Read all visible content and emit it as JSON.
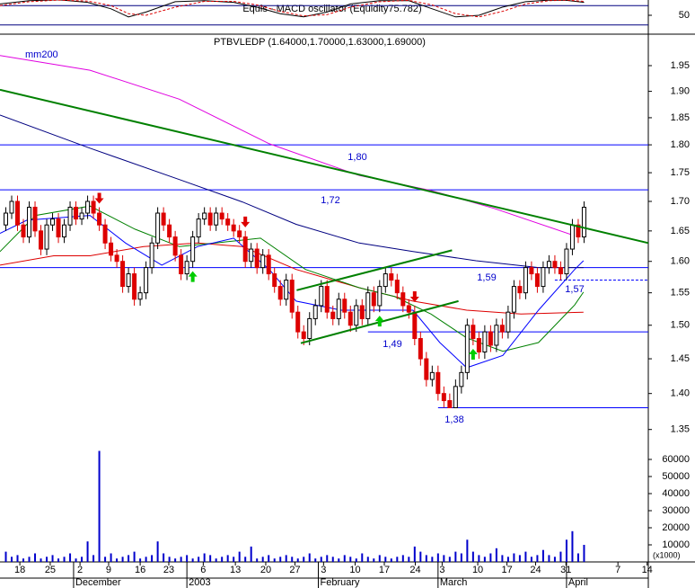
{
  "chart_data": [
    {
      "type": "line",
      "title": "Equis - MACD oscillator (Equidity75.782)",
      "xlim": [
        0,
        111
      ],
      "ylim": [
        0,
        100
      ],
      "yticks": [
        50
      ],
      "hlines": [
        20,
        80
      ],
      "series": [
        {
          "color": "#000000",
          "style": "solid",
          "x": [
            0,
            5,
            10,
            15,
            19,
            22,
            25,
            30,
            35,
            40,
            44,
            48,
            52,
            56,
            60,
            65,
            70,
            74,
            78,
            82,
            86,
            90,
            94,
            97,
            100
          ],
          "values": [
            85,
            95,
            98,
            90,
            70,
            45,
            60,
            92,
            95,
            90,
            75,
            55,
            45,
            60,
            85,
            95,
            95,
            70,
            45,
            50,
            75,
            92,
            97,
            96,
            90
          ]
        },
        {
          "color": "#dd0000",
          "style": "dashed",
          "x": [
            0,
            5,
            10,
            15,
            19,
            22,
            25,
            30,
            35,
            40,
            44,
            48,
            52,
            56,
            60,
            65,
            70,
            74,
            78,
            82,
            86,
            90,
            94,
            97,
            100
          ],
          "values": [
            80,
            92,
            97,
            94,
            80,
            55,
            50,
            75,
            93,
            93,
            82,
            62,
            48,
            52,
            75,
            92,
            96,
            82,
            55,
            45,
            62,
            85,
            95,
            97,
            93
          ]
        }
      ]
    },
    {
      "type": "candlestick",
      "title": "PTBVLEDP (1.64000,1.70000,1.63000,1.69000)",
      "annotation": "mm200",
      "log": true,
      "xlim": [
        0,
        111
      ],
      "ylim": [
        1.335,
        2.013
      ],
      "yticks": [
        1.35,
        {
          "value": 1.4,
          "label": "1.40"
        },
        1.45,
        {
          "value": 1.5,
          "label": "1.50"
        },
        1.55,
        {
          "value": 1.6,
          "label": "1.60"
        },
        1.65,
        {
          "value": 1.7,
          "label": "1.70"
        },
        1.75,
        {
          "value": 1.8,
          "label": "1.80"
        },
        1.85,
        {
          "value": 1.9,
          "label": "1.90"
        },
        1.95
      ],
      "up_color": "#ffffff",
      "down_color": "#dd0000",
      "x": [
        1,
        2,
        3,
        4,
        5,
        6,
        7,
        8,
        9,
        10,
        11,
        12,
        13,
        14,
        15,
        16,
        17,
        18,
        19,
        20,
        21,
        22,
        23,
        24,
        25,
        26,
        27,
        28,
        29,
        30,
        31,
        32,
        33,
        34,
        35,
        36,
        37,
        38,
        39,
        40,
        41,
        42,
        43,
        44,
        45,
        46,
        47,
        48,
        49,
        50,
        51,
        52,
        53,
        54,
        55,
        56,
        57,
        58,
        59,
        60,
        61,
        62,
        63,
        64,
        65,
        66,
        67,
        68,
        69,
        70,
        71,
        72,
        73,
        74,
        75,
        76,
        77,
        78,
        79,
        80,
        81,
        82,
        83,
        84,
        85,
        86,
        87,
        88,
        89,
        90,
        91,
        92,
        93,
        94,
        95,
        96,
        97,
        98,
        99,
        100
      ],
      "open": [
        1.66,
        1.68,
        1.7,
        1.66,
        1.64,
        1.69,
        1.65,
        1.62,
        1.66,
        1.67,
        1.64,
        1.66,
        1.69,
        1.67,
        1.68,
        1.7,
        1.68,
        1.66,
        1.63,
        1.61,
        1.6,
        1.56,
        1.58,
        1.54,
        1.55,
        1.59,
        1.63,
        1.68,
        1.66,
        1.64,
        1.61,
        1.58,
        1.6,
        1.64,
        1.67,
        1.68,
        1.66,
        1.68,
        1.67,
        1.66,
        1.65,
        1.64,
        1.6,
        1.62,
        1.59,
        1.61,
        1.58,
        1.56,
        1.54,
        1.57,
        1.52,
        1.49,
        1.48,
        1.51,
        1.53,
        1.56,
        1.52,
        1.51,
        1.54,
        1.52,
        1.5,
        1.53,
        1.51,
        1.55,
        1.53,
        1.56,
        1.58,
        1.57,
        1.55,
        1.53,
        1.52,
        1.48,
        1.45,
        1.42,
        1.43,
        1.4,
        1.39,
        1.38,
        1.41,
        1.43,
        1.5,
        1.48,
        1.46,
        1.49,
        1.47,
        1.5,
        1.49,
        1.52,
        1.56,
        1.55,
        1.59,
        1.58,
        1.56,
        1.59,
        1.6,
        1.59,
        1.58,
        1.62,
        1.66,
        1.64
      ],
      "high": [
        1.69,
        1.71,
        1.71,
        1.67,
        1.7,
        1.7,
        1.66,
        1.67,
        1.68,
        1.68,
        1.67,
        1.7,
        1.7,
        1.69,
        1.71,
        1.71,
        1.69,
        1.67,
        1.64,
        1.62,
        1.61,
        1.59,
        1.59,
        1.56,
        1.6,
        1.64,
        1.69,
        1.69,
        1.67,
        1.65,
        1.62,
        1.61,
        1.65,
        1.68,
        1.69,
        1.69,
        1.69,
        1.69,
        1.68,
        1.67,
        1.66,
        1.65,
        1.63,
        1.63,
        1.62,
        1.62,
        1.59,
        1.57,
        1.58,
        1.58,
        1.53,
        1.5,
        1.52,
        1.54,
        1.57,
        1.57,
        1.53,
        1.55,
        1.55,
        1.53,
        1.54,
        1.54,
        1.56,
        1.56,
        1.57,
        1.59,
        1.59,
        1.58,
        1.56,
        1.54,
        1.53,
        1.49,
        1.46,
        1.44,
        1.44,
        1.41,
        1.4,
        1.42,
        1.44,
        1.51,
        1.51,
        1.49,
        1.5,
        1.5,
        1.51,
        1.51,
        1.53,
        1.57,
        1.57,
        1.6,
        1.6,
        1.59,
        1.6,
        1.61,
        1.61,
        1.6,
        1.63,
        1.67,
        1.67,
        1.7
      ],
      "low": [
        1.65,
        1.67,
        1.65,
        1.63,
        1.63,
        1.64,
        1.61,
        1.61,
        1.65,
        1.63,
        1.63,
        1.65,
        1.66,
        1.66,
        1.67,
        1.67,
        1.65,
        1.62,
        1.6,
        1.59,
        1.55,
        1.55,
        1.53,
        1.53,
        1.54,
        1.58,
        1.62,
        1.65,
        1.63,
        1.6,
        1.57,
        1.57,
        1.59,
        1.63,
        1.66,
        1.65,
        1.65,
        1.66,
        1.65,
        1.64,
        1.63,
        1.59,
        1.59,
        1.58,
        1.58,
        1.57,
        1.55,
        1.53,
        1.53,
        1.51,
        1.48,
        1.47,
        1.47,
        1.5,
        1.52,
        1.51,
        1.5,
        1.5,
        1.51,
        1.49,
        1.49,
        1.5,
        1.5,
        1.52,
        1.52,
        1.55,
        1.56,
        1.54,
        1.52,
        1.51,
        1.47,
        1.44,
        1.41,
        1.41,
        1.39,
        1.38,
        1.38,
        1.38,
        1.4,
        1.42,
        1.47,
        1.45,
        1.45,
        1.46,
        1.46,
        1.48,
        1.48,
        1.51,
        1.54,
        1.54,
        1.57,
        1.55,
        1.55,
        1.58,
        1.58,
        1.57,
        1.57,
        1.61,
        1.63,
        1.63
      ],
      "close": [
        1.68,
        1.7,
        1.66,
        1.64,
        1.69,
        1.65,
        1.62,
        1.66,
        1.67,
        1.64,
        1.66,
        1.69,
        1.67,
        1.68,
        1.7,
        1.68,
        1.66,
        1.63,
        1.61,
        1.6,
        1.56,
        1.58,
        1.54,
        1.55,
        1.59,
        1.63,
        1.68,
        1.66,
        1.64,
        1.61,
        1.58,
        1.6,
        1.64,
        1.67,
        1.68,
        1.66,
        1.68,
        1.67,
        1.66,
        1.65,
        1.64,
        1.6,
        1.62,
        1.59,
        1.61,
        1.58,
        1.56,
        1.54,
        1.57,
        1.52,
        1.49,
        1.48,
        1.51,
        1.53,
        1.56,
        1.52,
        1.51,
        1.54,
        1.52,
        1.5,
        1.53,
        1.51,
        1.55,
        1.53,
        1.56,
        1.58,
        1.57,
        1.55,
        1.53,
        1.52,
        1.48,
        1.45,
        1.42,
        1.43,
        1.4,
        1.39,
        1.38,
        1.41,
        1.43,
        1.5,
        1.48,
        1.46,
        1.49,
        1.47,
        1.5,
        1.49,
        1.52,
        1.56,
        1.55,
        1.59,
        1.58,
        1.56,
        1.59,
        1.6,
        1.59,
        1.58,
        1.62,
        1.66,
        1.64,
        1.69
      ],
      "lines": [
        {
          "color": "#e000e0",
          "x": [
            0,
            15.4,
            30.7,
            46.1,
            61.5,
            73.8,
            84.6,
            98.4
          ],
          "values": [
            1.97,
            1.941,
            1.885,
            1.802,
            1.745,
            1.719,
            1.688,
            1.642
          ]
        },
        {
          "color": "#000080",
          "x": [
            0,
            15.4,
            30.7,
            41.5,
            50.7,
            61.5,
            70.7,
            81.5,
            92.2,
            99.9
          ],
          "values": [
            1.855,
            1.794,
            1.738,
            1.699,
            1.661,
            1.63,
            1.616,
            1.601,
            1.59,
            1.59
          ]
        },
        {
          "color": "#dd0000",
          "x": [
            0,
            9.2,
            15.4,
            24.6,
            33.8,
            41.5,
            50.7,
            61.5,
            70.7,
            79.9,
            89.2,
            99.9
          ],
          "values": [
            1.594,
            1.609,
            1.609,
            1.624,
            1.63,
            1.624,
            1.587,
            1.558,
            1.537,
            1.523,
            1.517,
            1.52
          ]
        },
        {
          "color": "#008000",
          "x": [
            0,
            6.1,
            15.4,
            23.1,
            30.7,
            36.9,
            44.6,
            52.3,
            61.5,
            67.6,
            73.8,
            79.9,
            86.1,
            92.2,
            98.4,
            99.9
          ],
          "values": [
            1.616,
            1.676,
            1.692,
            1.653,
            1.624,
            1.63,
            1.638,
            1.587,
            1.558,
            1.544,
            1.517,
            1.481,
            1.461,
            1.474,
            1.531,
            1.551
          ]
        },
        {
          "color": "#0000ff",
          "x": [
            0,
            4.6,
            15.4,
            21.5,
            27.7,
            33.8,
            40,
            46.1,
            50.7,
            58.4,
            64.6,
            70.7,
            75.3,
            79.9,
            86.1,
            92.2,
            98.4,
            99.9
          ],
          "values": [
            1.646,
            1.668,
            1.676,
            1.63,
            1.594,
            1.624,
            1.638,
            1.587,
            1.537,
            1.523,
            1.523,
            1.523,
            1.474,
            1.437,
            1.455,
            1.523,
            1.587,
            1.601
          ]
        }
      ],
      "trendlines": [
        {
          "color": "#008000",
          "x": [
            0,
            111
          ],
          "values": [
            1.903,
            1.63
          ]
        },
        {
          "color": "#008000",
          "x": [
            51.5,
            78.5
          ],
          "values": [
            1.473,
            1.537
          ]
        },
        {
          "color": "#008000",
          "x": [
            50.8,
            77.4
          ],
          "values": [
            1.554,
            1.618
          ]
        }
      ],
      "levels": [
        {
          "value": 1.8,
          "label": "1,80",
          "x": [
            0,
            111
          ],
          "style": "solid"
        },
        {
          "value": 1.72,
          "label": "1,72",
          "x": [
            0,
            111
          ],
          "style": "solid"
        },
        {
          "value": 1.59,
          "label": "1,59",
          "x": [
            0,
            111
          ],
          "style": "solid"
        },
        {
          "value": 1.57,
          "label": "1,57",
          "x": [
            95,
            111
          ],
          "style": "dashed"
        },
        {
          "value": 1.49,
          "label": "1,49",
          "x": [
            63,
            111
          ],
          "style": "solid"
        },
        {
          "value": 1.38,
          "label": "1,38",
          "x": [
            75,
            111
          ],
          "style": "solid"
        }
      ],
      "buy_signals": [
        33,
        65,
        81
      ],
      "sell_signals": [
        17,
        42,
        71
      ]
    },
    {
      "type": "bar",
      "unit_label": "(x1000)",
      "xlim": [
        0,
        111
      ],
      "ylim": [
        0,
        70000
      ],
      "yticks": [
        10000,
        20000,
        30000,
        40000,
        50000,
        60000
      ],
      "color": "#0000cc",
      "x": [
        1,
        2,
        3,
        4,
        5,
        6,
        7,
        8,
        9,
        10,
        11,
        12,
        13,
        14,
        15,
        16,
        17,
        18,
        19,
        20,
        21,
        22,
        23,
        24,
        25,
        26,
        27,
        28,
        29,
        30,
        31,
        32,
        33,
        34,
        35,
        36,
        37,
        38,
        39,
        40,
        41,
        42,
        43,
        44,
        45,
        46,
        47,
        48,
        49,
        50,
        51,
        52,
        53,
        54,
        55,
        56,
        57,
        58,
        59,
        60,
        61,
        62,
        63,
        64,
        65,
        66,
        67,
        68,
        69,
        70,
        71,
        72,
        73,
        74,
        75,
        76,
        77,
        78,
        79,
        80,
        81,
        82,
        83,
        84,
        85,
        86,
        87,
        88,
        89,
        90,
        91,
        92,
        93,
        94,
        95,
        96,
        97,
        98,
        99,
        100
      ],
      "values": [
        6000,
        3000,
        4000,
        2000,
        3000,
        5000,
        2000,
        3000,
        4000,
        2000,
        3000,
        5000,
        2000,
        3000,
        12000,
        4000,
        65000,
        3000,
        5000,
        2000,
        3000,
        4000,
        6000,
        2000,
        3000,
        4000,
        12000,
        5000,
        3000,
        2000,
        3000,
        4000,
        2000,
        3000,
        5000,
        4000,
        2000,
        3000,
        4000,
        3000,
        6000,
        3000,
        9000,
        2000,
        3000,
        4000,
        2000,
        3000,
        4000,
        3000,
        2000,
        3000,
        5000,
        2000,
        3000,
        4000,
        3000,
        2000,
        4000,
        3000,
        2000,
        5000,
        3000,
        2000,
        4000,
        3000,
        2000,
        3000,
        4000,
        3000,
        9000,
        6000,
        4000,
        3000,
        5000,
        4000,
        3000,
        6000,
        5000,
        13000,
        6000,
        4000,
        3000,
        5000,
        8000,
        4000,
        3000,
        5000,
        4000,
        6000,
        3000,
        4000,
        7000,
        4000,
        3000,
        6000,
        13000,
        18000,
        5000,
        10000
      ],
      "xticks": [
        {
          "value": 3.4,
          "label": "18"
        },
        {
          "value": 8.6,
          "label": "25"
        },
        {
          "value": 13.7,
          "label": "2"
        },
        {
          "value": 18.6,
          "label": "9"
        },
        {
          "value": 24,
          "label": "16"
        },
        {
          "value": 28.9,
          "label": "23"
        },
        {
          "value": 34.8,
          "label": "6"
        },
        {
          "value": 40.3,
          "label": "13"
        },
        {
          "value": 45.5,
          "label": "20"
        },
        {
          "value": 50.5,
          "label": "27"
        },
        {
          "value": 55.4,
          "label": "3"
        },
        {
          "value": 60.8,
          "label": "10"
        },
        {
          "value": 65.8,
          "label": "17"
        },
        {
          "value": 71.1,
          "label": "24"
        },
        {
          "value": 75.7,
          "label": "3"
        },
        {
          "value": 81.8,
          "label": "10"
        },
        {
          "value": 86.8,
          "label": "17"
        },
        {
          "value": 91.7,
          "label": "24"
        },
        {
          "value": 96.9,
          "label": "31"
        },
        {
          "value": 105.8,
          "label": "7"
        },
        {
          "value": 110.8,
          "label": "14"
        }
      ],
      "months": [
        {
          "value": 12.6,
          "label": "December"
        },
        {
          "value": 32,
          "label": "2003"
        },
        {
          "value": 54.5,
          "label": "February"
        },
        {
          "value": 75,
          "label": "March"
        },
        {
          "value": 97,
          "label": "April"
        }
      ]
    }
  ]
}
